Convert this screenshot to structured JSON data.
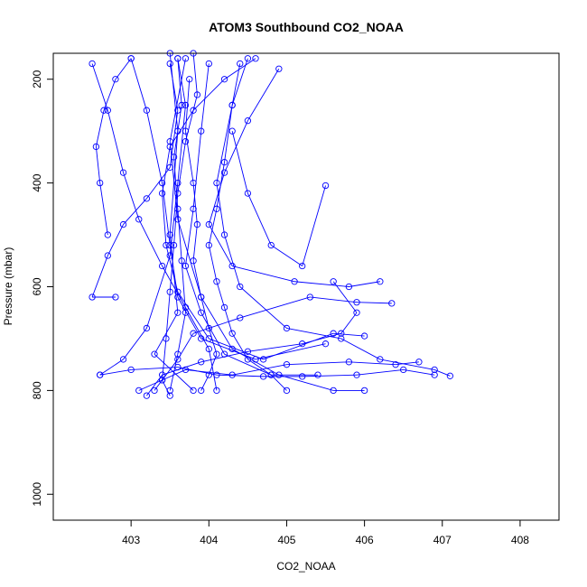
{
  "chart_data": {
    "type": "line",
    "title": "ATOM3 Southbound CO2_NOAA",
    "xlabel": "CO2_NOAA",
    "ylabel": "Pressure (mbar)",
    "xlim": [
      402.0,
      408.5
    ],
    "ylim": [
      1050,
      150
    ],
    "y_reversed": true,
    "x_ticks": [
      403,
      404,
      405,
      406,
      407,
      408
    ],
    "x_tick_labels": [
      "403",
      "404",
      "405",
      "406",
      "407",
      "408"
    ],
    "y_ticks": [
      200,
      400,
      600,
      800,
      1000
    ],
    "y_tick_labels": [
      "200",
      "400",
      "600",
      "800",
      "1000"
    ],
    "grid": false,
    "legend": "none",
    "colors": {
      "series": "#0000ff",
      "axis": "#000000"
    },
    "marker": "open-circle",
    "series": [
      {
        "points": [
          [
            403.5,
            150
          ],
          [
            403.6,
            300
          ],
          [
            403.5,
            500
          ],
          [
            403.6,
            650
          ],
          [
            403.3,
            730
          ],
          [
            403.8,
            800
          ]
        ]
      },
      {
        "points": [
          [
            402.6,
            770
          ],
          [
            402.9,
            740
          ],
          [
            403.2,
            680
          ],
          [
            403.5,
            540
          ],
          [
            403.6,
            400
          ],
          [
            403.7,
            250
          ],
          [
            403.6,
            160
          ]
        ]
      },
      {
        "points": [
          [
            403.7,
            160
          ],
          [
            403.5,
            320
          ],
          [
            403.6,
            470
          ],
          [
            403.9,
            620
          ],
          [
            404.3,
            720
          ],
          [
            404.9,
            770
          ],
          [
            405.6,
            800
          ],
          [
            406.0,
            800
          ]
        ]
      },
      {
        "points": [
          [
            404.5,
            160
          ],
          [
            404.3,
            250
          ],
          [
            404.1,
            400
          ],
          [
            404.2,
            500
          ],
          [
            404.4,
            600
          ],
          [
            405.0,
            680
          ],
          [
            405.7,
            700
          ],
          [
            406.2,
            740
          ],
          [
            406.9,
            760
          ],
          [
            407.1,
            772
          ]
        ]
      },
      {
        "points": [
          [
            403.0,
            160
          ],
          [
            403.2,
            260
          ],
          [
            403.4,
            400
          ],
          [
            403.5,
            520
          ],
          [
            403.6,
            620
          ],
          [
            403.9,
            700
          ],
          [
            404.6,
            740
          ],
          [
            405.5,
            710
          ]
        ]
      },
      {
        "points": [
          [
            402.5,
            170
          ],
          [
            402.7,
            260
          ],
          [
            402.9,
            380
          ],
          [
            403.1,
            470
          ],
          [
            403.4,
            560
          ],
          [
            403.7,
            640
          ],
          [
            404.0,
            720
          ],
          [
            404.1,
            800
          ]
        ]
      },
      {
        "points": [
          [
            404.0,
            170
          ],
          [
            403.9,
            300
          ],
          [
            403.8,
            450
          ],
          [
            403.7,
            560
          ],
          [
            403.9,
            650
          ],
          [
            404.2,
            730
          ],
          [
            404.8,
            770
          ],
          [
            405.4,
            770
          ]
        ]
      },
      {
        "points": [
          [
            404.9,
            180
          ],
          [
            404.5,
            280
          ],
          [
            404.2,
            380
          ],
          [
            404.0,
            480
          ],
          [
            404.3,
            560
          ],
          [
            405.1,
            590
          ],
          [
            405.8,
            600
          ],
          [
            406.2,
            590
          ]
        ]
      },
      {
        "points": [
          [
            402.8,
            620
          ],
          [
            402.5,
            620
          ],
          [
            402.7,
            540
          ],
          [
            402.9,
            480
          ],
          [
            403.2,
            430
          ],
          [
            403.5,
            370
          ],
          [
            403.6,
            260
          ],
          [
            403.5,
            170
          ]
        ]
      },
      {
        "points": [
          [
            403.3,
            800
          ],
          [
            403.6,
            740
          ],
          [
            403.8,
            690
          ],
          [
            404.4,
            660
          ],
          [
            405.3,
            620
          ],
          [
            405.9,
            630
          ],
          [
            406.35,
            632
          ]
        ]
      },
      {
        "points": [
          [
            403.1,
            800
          ],
          [
            403.4,
            780
          ],
          [
            403.7,
            760
          ],
          [
            404.3,
            770
          ],
          [
            405.0,
            750
          ],
          [
            405.8,
            745
          ],
          [
            406.4,
            750
          ],
          [
            406.7,
            745
          ]
        ]
      },
      {
        "points": [
          [
            403.6,
            160
          ],
          [
            403.65,
            250
          ],
          [
            403.55,
            350
          ],
          [
            403.6,
            450
          ],
          [
            403.65,
            550
          ],
          [
            403.7,
            650
          ],
          [
            403.6,
            730
          ],
          [
            403.5,
            800
          ]
        ]
      },
      {
        "points": [
          [
            404.3,
            300
          ],
          [
            404.5,
            420
          ],
          [
            404.8,
            520
          ],
          [
            405.2,
            560
          ],
          [
            405.5,
            405
          ]
        ]
      },
      {
        "points": [
          [
            402.7,
            500
          ],
          [
            402.6,
            400
          ],
          [
            402.55,
            330
          ],
          [
            402.65,
            260
          ],
          [
            402.8,
            200
          ],
          [
            403.0,
            160
          ]
        ]
      },
      {
        "points": [
          [
            403.9,
            800
          ],
          [
            404.0,
            770
          ],
          [
            404.1,
            730
          ],
          [
            404.0,
            680
          ],
          [
            403.9,
            620
          ],
          [
            403.8,
            550
          ],
          [
            403.85,
            480
          ],
          [
            403.8,
            400
          ],
          [
            403.7,
            300
          ],
          [
            403.75,
            200
          ]
        ]
      },
      {
        "points": [
          [
            404.6,
            160
          ],
          [
            404.2,
            200
          ],
          [
            403.8,
            260
          ],
          [
            403.5,
            330
          ],
          [
            403.4,
            420
          ],
          [
            403.45,
            520
          ],
          [
            403.6,
            610
          ],
          [
            404.0,
            700
          ],
          [
            404.7,
            740
          ],
          [
            405.6,
            690
          ],
          [
            406.0,
            695
          ]
        ]
      },
      {
        "points": [
          [
            403.2,
            810
          ],
          [
            403.4,
            770
          ],
          [
            403.9,
            745
          ],
          [
            404.5,
            725
          ],
          [
            405.2,
            710
          ],
          [
            405.7,
            690
          ],
          [
            405.9,
            650
          ],
          [
            405.6,
            590
          ]
        ]
      },
      {
        "points": [
          [
            403.8,
            150
          ],
          [
            403.85,
            230
          ],
          [
            403.7,
            320
          ],
          [
            403.6,
            420
          ],
          [
            403.55,
            520
          ],
          [
            403.5,
            610
          ],
          [
            403.45,
            700
          ],
          [
            403.4,
            780
          ],
          [
            403.5,
            810
          ]
        ]
      },
      {
        "points": [
          [
            405.0,
            800
          ],
          [
            404.8,
            770
          ],
          [
            404.5,
            740
          ],
          [
            404.3,
            690
          ],
          [
            404.2,
            640
          ],
          [
            404.1,
            590
          ],
          [
            404.0,
            520
          ],
          [
            404.1,
            450
          ],
          [
            404.2,
            360
          ],
          [
            404.3,
            250
          ],
          [
            404.4,
            170
          ]
        ]
      },
      {
        "points": [
          [
            402.6,
            770
          ],
          [
            403.0,
            760
          ],
          [
            403.6,
            755
          ],
          [
            404.1,
            770
          ],
          [
            404.7,
            773
          ],
          [
            405.2,
            773
          ],
          [
            405.9,
            770
          ],
          [
            406.5,
            760
          ],
          [
            406.9,
            770
          ]
        ]
      }
    ]
  }
}
